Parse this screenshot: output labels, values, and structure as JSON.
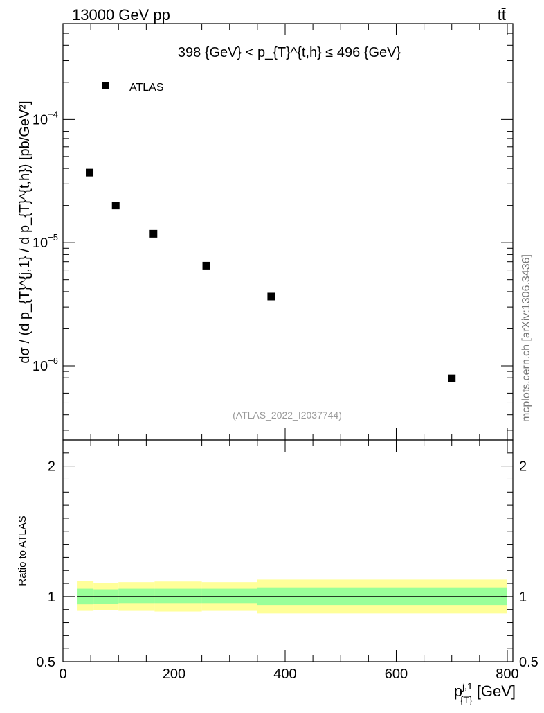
{
  "header": {
    "energy_label": "13000 GeV pp",
    "process_label": "tt̄"
  },
  "side_label": "mcplots.cern.ch [arXiv:1306.3436]",
  "watermark": "(ATLAS_2022_I2037744)",
  "colors": {
    "data_marker": "#000000",
    "band_inner": "#99ff99",
    "band_outer": "#ffff99",
    "ratio_line": "#000000"
  },
  "chart_data": [
    {
      "type": "scatter",
      "panel": "main",
      "title": "398 {GeV} < p_{T}^{t,h} ≤ 496 {GeV}",
      "ylabel": "dσ / (d p_{T}^{j,1} / d p_{T}^{t,h}) [pb/GeV²]",
      "yscale": "log",
      "ylim": [
        2.5e-07,
        0.0006
      ],
      "xlim": [
        0,
        810
      ],
      "y_tick_labels": [
        "10^-6",
        "10^-5",
        "10^-4"
      ],
      "legend": {
        "position": "top-left",
        "entries": [
          "ATLAS"
        ]
      },
      "series": [
        {
          "name": "ATLAS",
          "x": [
            48,
            95,
            163,
            258,
            375,
            700
          ],
          "y": [
            3.7e-05,
            2e-05,
            1.18e-05,
            6.5e-06,
            3.65e-06,
            7.9e-07
          ]
        }
      ]
    },
    {
      "type": "area",
      "panel": "ratio",
      "ylabel": "Ratio to ATLAS",
      "xlabel": "p_{T}^{j,1} [GeV]",
      "xlim": [
        0,
        810
      ],
      "ylim": [
        0.5,
        2.2
      ],
      "x_tick_labels": [
        "0",
        "200",
        "400",
        "600",
        "800"
      ],
      "y_tick_labels": [
        "0.5",
        "1",
        "2"
      ],
      "reference_value": 1.0,
      "bins": [
        {
          "x_low": 25,
          "x_high": 55,
          "inner": [
            0.94,
            1.06
          ],
          "outer": [
            0.89,
            1.12
          ]
        },
        {
          "x_low": 55,
          "x_high": 100,
          "inner": [
            0.945,
            1.055
          ],
          "outer": [
            0.895,
            1.105
          ]
        },
        {
          "x_low": 100,
          "x_high": 165,
          "inner": [
            0.95,
            1.06
          ],
          "outer": [
            0.89,
            1.11
          ]
        },
        {
          "x_low": 165,
          "x_high": 250,
          "inner": [
            0.95,
            1.06
          ],
          "outer": [
            0.885,
            1.115
          ]
        },
        {
          "x_low": 250,
          "x_high": 350,
          "inner": [
            0.95,
            1.06
          ],
          "outer": [
            0.89,
            1.11
          ]
        },
        {
          "x_low": 350,
          "x_high": 800,
          "inner": [
            0.935,
            1.07
          ],
          "outer": [
            0.87,
            1.13
          ]
        }
      ]
    }
  ]
}
